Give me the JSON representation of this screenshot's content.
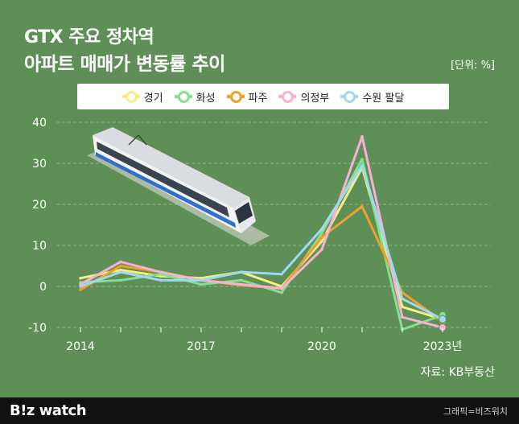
{
  "header": {
    "title_line1": "GTX 주요 정차역",
    "title_line2": "아파트 매매가 변동률 추이",
    "unit": "[단위: %]"
  },
  "footer": {
    "source": "자료: KB부동산",
    "logo": "B!z watch",
    "credit": "그래픽=비즈워치"
  },
  "colors": {
    "background": "#5e8f56",
    "grid": "#8fb587",
    "train_body": "#f2f2f2",
    "train_stripe": "#2e6fd0"
  },
  "chart_data": {
    "type": "line",
    "x": [
      2014,
      2015,
      2016,
      2017,
      2018,
      2019,
      2020,
      2021,
      2022,
      2023
    ],
    "x_tick_values": [
      2014,
      2017,
      2020,
      2023
    ],
    "x_tick_labels": [
      "2014",
      "2017",
      "2020",
      "2023년"
    ],
    "ylim": [
      -10,
      40
    ],
    "y_ticks": [
      40,
      30,
      20,
      10,
      0,
      -10
    ],
    "grid": true,
    "legend_position": "top",
    "series": [
      {
        "name": "경기",
        "color": "#f7ee82",
        "values": [
          2,
          4,
          2.5,
          2,
          3.5,
          0,
          11,
          29,
          -5,
          -8
        ]
      },
      {
        "name": "화성",
        "color": "#86de90",
        "values": [
          1,
          1.5,
          3,
          0.5,
          1.5,
          -1.5,
          13,
          31,
          -10.5,
          -7
        ]
      },
      {
        "name": "파주",
        "color": "#f0a02a",
        "values": [
          -0.8,
          5,
          3.5,
          1.5,
          0.3,
          -0.5,
          12,
          19.5,
          -1.5,
          -8.5
        ]
      },
      {
        "name": "의정부",
        "color": "#f7b0d6",
        "values": [
          0.5,
          6,
          3.5,
          1.5,
          0.5,
          -0.5,
          9,
          36.5,
          -7.5,
          -10
        ]
      },
      {
        "name": "수원 팔달",
        "color": "#9fd9ef",
        "values": [
          0,
          3.5,
          1.5,
          1.5,
          3.5,
          3,
          14,
          29.5,
          -3,
          -8
        ]
      }
    ]
  }
}
